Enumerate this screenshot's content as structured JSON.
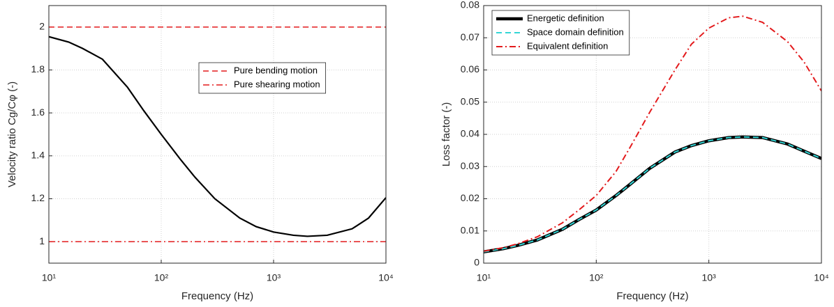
{
  "chart_data": [
    {
      "type": "line",
      "xlabel": "Frequency (Hz)",
      "ylabel": "Velocity ratio Cg/Cφ (-)",
      "xscale": "log",
      "xlim": [
        10,
        10000
      ],
      "xticks": [
        {
          "value": 10,
          "label": "10¹"
        },
        {
          "value": 100,
          "label": "10²"
        },
        {
          "value": 1000,
          "label": "10³"
        },
        {
          "value": 10000,
          "label": "10⁴"
        }
      ],
      "ylim": [
        0.9,
        2.1
      ],
      "yticks": [
        1,
        1.2,
        1.4,
        1.6,
        1.8,
        2
      ],
      "grid": true,
      "legend": "upper right",
      "x": [
        10,
        15,
        20,
        30,
        50,
        70,
        100,
        150,
        200,
        300,
        500,
        700,
        1000,
        1500,
        2000,
        3000,
        5000,
        7000,
        10000
      ],
      "series": [
        {
          "color": "#000000",
          "linestyle": "solid",
          "linewidth": 2.2,
          "values": [
            1.955,
            1.93,
            1.9,
            1.85,
            1.72,
            1.61,
            1.5,
            1.38,
            1.3,
            1.2,
            1.11,
            1.07,
            1.045,
            1.03,
            1.025,
            1.03,
            1.06,
            1.11,
            1.205
          ]
        },
        {
          "name": "Pure bending motion",
          "color": "#e31a1c",
          "linestyle": "dashed",
          "linewidth": 1.5,
          "values": [
            2,
            2,
            2,
            2,
            2,
            2,
            2,
            2,
            2,
            2,
            2,
            2,
            2,
            2,
            2,
            2,
            2,
            2,
            2
          ]
        },
        {
          "name": "Pure shearing motion",
          "color": "#e31a1c",
          "linestyle": "dashdot",
          "linewidth": 1.5,
          "values": [
            1,
            1,
            1,
            1,
            1,
            1,
            1,
            1,
            1,
            1,
            1,
            1,
            1,
            1,
            1,
            1,
            1,
            1,
            1
          ]
        }
      ]
    },
    {
      "type": "line",
      "xlabel": "Frequency (Hz)",
      "ylabel": "Loss factor (-)",
      "xscale": "log",
      "xlim": [
        10,
        10000
      ],
      "xticks": [
        {
          "value": 10,
          "label": "10¹"
        },
        {
          "value": 100,
          "label": "10²"
        },
        {
          "value": 1000,
          "label": "10³"
        },
        {
          "value": 10000,
          "label": "10⁴"
        }
      ],
      "ylim": [
        0,
        0.08
      ],
      "yticks": [
        0,
        0.01,
        0.02,
        0.03,
        0.04,
        0.05,
        0.06,
        0.07,
        0.08
      ],
      "grid": true,
      "legend": "upper left",
      "x": [
        10,
        15,
        20,
        30,
        50,
        70,
        100,
        150,
        200,
        300,
        500,
        700,
        1000,
        1500,
        2000,
        3000,
        5000,
        7000,
        10000
      ],
      "series": [
        {
          "name": "Energetic definition",
          "color": "#000000",
          "linestyle": "solid",
          "linewidth": 4.5,
          "values": [
            0.0035,
            0.0045,
            0.0055,
            0.0072,
            0.0105,
            0.0135,
            0.0165,
            0.021,
            0.0245,
            0.0295,
            0.0345,
            0.0365,
            0.038,
            0.039,
            0.0392,
            0.039,
            0.037,
            0.0348,
            0.0325
          ]
        },
        {
          "name": "Space domain definition",
          "color": "#33d6d6",
          "linestyle": "dashed",
          "linewidth": 2,
          "values": [
            0.0035,
            0.0045,
            0.0055,
            0.0072,
            0.0105,
            0.0135,
            0.0165,
            0.021,
            0.0245,
            0.0295,
            0.0345,
            0.0365,
            0.038,
            0.039,
            0.0392,
            0.039,
            0.037,
            0.0348,
            0.0325
          ]
        },
        {
          "name": "Equivalent definition",
          "color": "#e31a1c",
          "linestyle": "dashdot",
          "linewidth": 2,
          "values": [
            0.0037,
            0.0048,
            0.006,
            0.0082,
            0.0125,
            0.0165,
            0.021,
            0.0285,
            0.036,
            0.047,
            0.06,
            0.068,
            0.073,
            0.0762,
            0.0767,
            0.0748,
            0.0688,
            0.0625,
            0.0535
          ]
        }
      ]
    }
  ]
}
